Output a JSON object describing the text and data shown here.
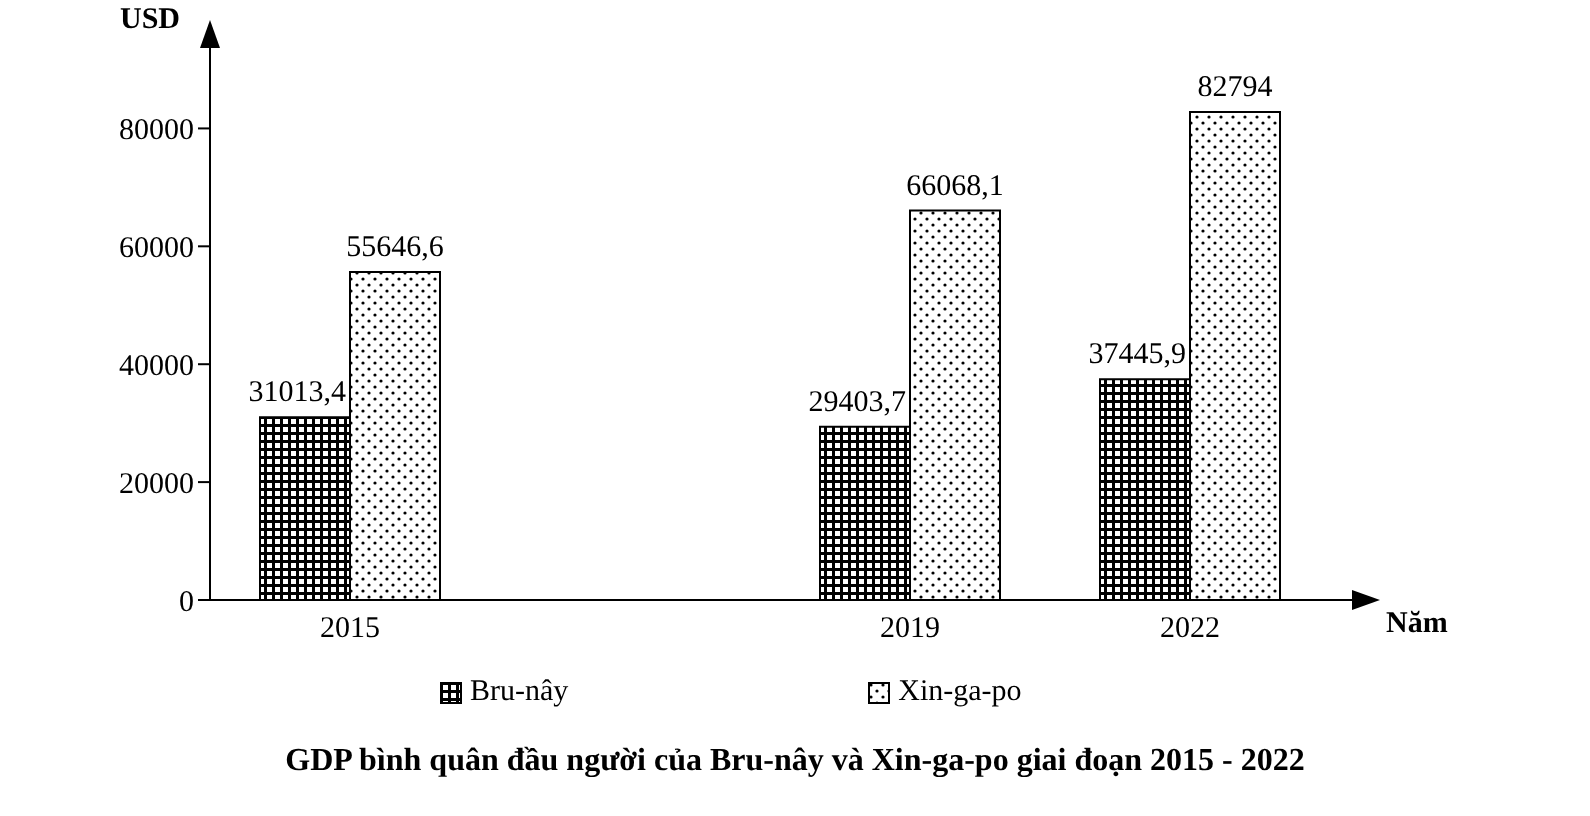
{
  "chart_data": {
    "type": "bar",
    "title": "GDP bình quân đầu người của Bru-nây và Xin-ga-po giai đoạn 2015 - 2022",
    "xlabel": "Năm",
    "ylabel": "USD",
    "categories": [
      "2015",
      null,
      "2019",
      "2022"
    ],
    "series": [
      {
        "name": "Bru-nây",
        "color": "#000000",
        "values": [
          31013.4,
          null,
          29403.7,
          37445.9
        ],
        "value_labels": [
          "31013,4",
          null,
          "29403,7",
          "37445,9"
        ]
      },
      {
        "name": "Xin-ga-po",
        "color": "#000000",
        "values": [
          55646.6,
          null,
          66068.1,
          82794
        ],
        "value_labels": [
          "55646,6",
          null,
          "66068,1",
          "82794"
        ]
      }
    ],
    "ylim": [
      0,
      95000
    ],
    "yticks": [
      0,
      20000,
      40000,
      60000,
      80000
    ],
    "grid": false,
    "legend": "bottom"
  }
}
